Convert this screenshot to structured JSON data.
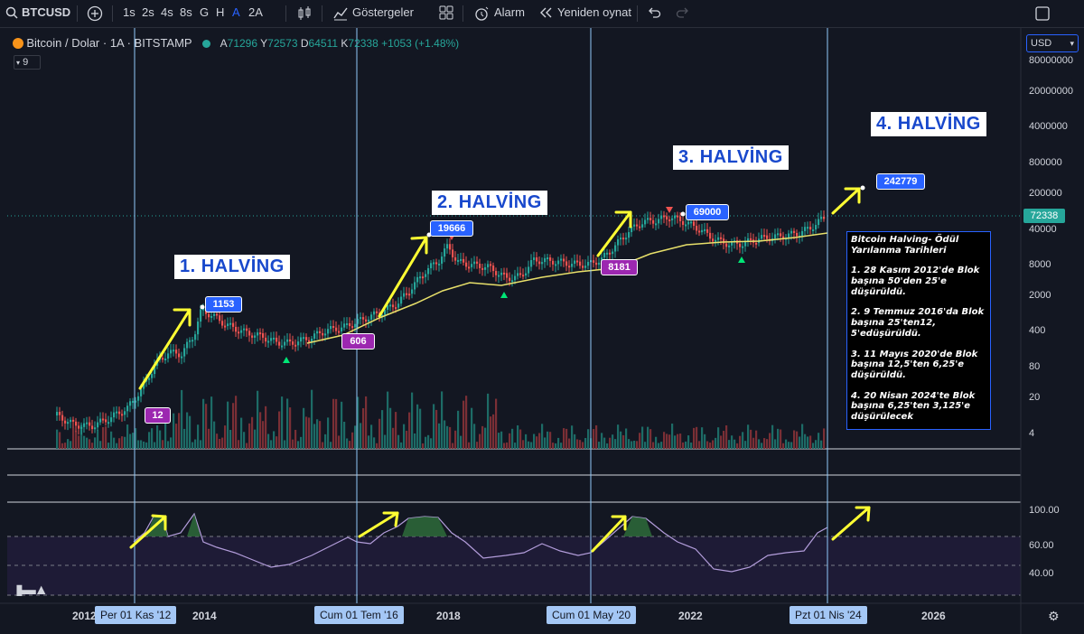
{
  "toolbar": {
    "symbol": "BTCUSD",
    "intervals": [
      "1s",
      "2s",
      "4s",
      "8s",
      "G",
      "H",
      "A",
      "2A"
    ],
    "active_interval": "A",
    "indicators_label": "Göstergeler",
    "alert_label": "Alarm",
    "replay_label": "Yeniden oynat"
  },
  "legend": {
    "title": "Bitcoin / Dolar · 1A · BITSTAMP",
    "o_label": "A",
    "o": "71296",
    "h_label": "Y",
    "h": "72573",
    "l_label": "D",
    "l": "64511",
    "c_label": "K",
    "c": "72338",
    "change": "+1053 (+1.48%)",
    "indicator_value": "9"
  },
  "currency": "USD",
  "price_axis": [
    "80000000",
    "20000000",
    "4000000",
    "800000",
    "200000",
    "40000",
    "8000",
    "2000",
    "400",
    "80",
    "20",
    "4"
  ],
  "current_price": "72338",
  "rsi_axis": [
    "100.00",
    "60.00",
    "40.00"
  ],
  "halvings": [
    {
      "title": "1. HALVİNG",
      "start_price": "12",
      "peak_price": "1153",
      "date": "Per 01 Kas '12"
    },
    {
      "title": "2. HALVİNG",
      "start_price": "606",
      "peak_price": "19666",
      "date": "Cum 01 Tem '16"
    },
    {
      "title": "3. HALVİNG",
      "start_price": "8181",
      "peak_price": "69000",
      "date": "Cum 01 May '20"
    },
    {
      "title": "4. HALVİNG",
      "target_price": "242779",
      "date": "Pzt 01 Nis '24"
    }
  ],
  "x_axis_years": [
    "2012",
    "2014",
    "2018",
    "2022",
    "2026"
  ],
  "info_box": {
    "title": "Bitcoin Halving- Ödül Yarılanma Tarihleri",
    "items": [
      "1. 28 Kasım 2012'de Blok başına 50'den 25'e düşürüldü.",
      "2. 9 Temmuz 2016'da Blok başına 25'ten12, 5'edüşürüldü.",
      "3. 11 Mayıs 2020'de Blok başına 12,5'ten 6,25'e düşürüldü.",
      "4. 20 Nisan 2024'te Blok başına 6,25'ten 3,125'e düşürülecek"
    ]
  },
  "colors": {
    "background": "#131722",
    "up": "#26a69a",
    "down": "#ef5350",
    "ma": "#e8e06a",
    "rsi": "#b39ddb",
    "arrow": "#ffff33",
    "halving_line": "#90caf9",
    "label_blue": "#2962ff",
    "label_purple": "#9c27b0"
  },
  "chart_data": {
    "type": "candlestick",
    "interval": "1 month",
    "scale": "log",
    "price_range": [
      4,
      80000000
    ],
    "rsi_range": [
      0,
      100
    ],
    "halving_dates": [
      "2012-11-01",
      "2016-07-01",
      "2020-05-01",
      "2024-04-01"
    ],
    "annotated_prices": [
      {
        "label": "12",
        "type": "halving start"
      },
      {
        "label": "1153",
        "type": "cycle peak"
      },
      {
        "label": "606",
        "type": "halving start"
      },
      {
        "label": "19666",
        "type": "cycle peak"
      },
      {
        "label": "8181",
        "type": "halving start"
      },
      {
        "label": "69000",
        "type": "cycle peak"
      },
      {
        "label": "242779",
        "type": "projected target"
      }
    ],
    "last_close": 72338
  }
}
